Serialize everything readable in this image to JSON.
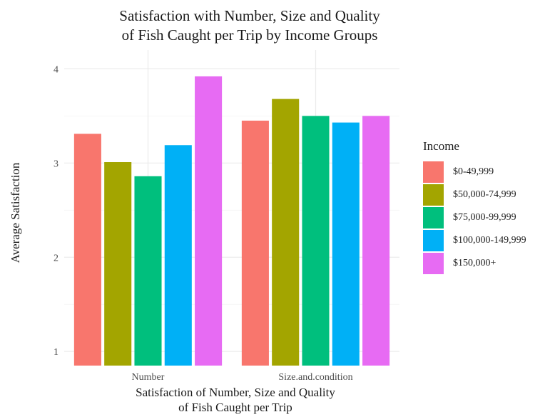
{
  "chart_data": {
    "type": "bar",
    "title": [
      "Satisfaction with Number, Size and Quality",
      "of Fish Caught per Trip by Income Groups"
    ],
    "xlabel": [
      "Satisfaction of Number, Size and Quality",
      "of Fish Caught per Trip"
    ],
    "ylabel": "Average Satisfaction",
    "categories": [
      "Number",
      "Size.and.condition"
    ],
    "yticks": [
      1,
      2,
      3,
      4
    ],
    "ylim": [
      0.85,
      4.2
    ],
    "grid": true,
    "legend": {
      "title": "Income",
      "position": "right"
    },
    "series": [
      {
        "name": "$0-49,999",
        "color": "#F8766D",
        "values": [
          3.31,
          3.45
        ]
      },
      {
        "name": "$50,000-74,999",
        "color": "#A3A500",
        "values": [
          3.01,
          3.68
        ]
      },
      {
        "name": "$75,000-99,999",
        "color": "#00BF7D",
        "values": [
          2.86,
          3.5
        ]
      },
      {
        "name": "$100,000-149,999",
        "color": "#00B0F6",
        "values": [
          3.19,
          3.43
        ]
      },
      {
        "name": "$150,000+",
        "color": "#E76BF3",
        "values": [
          3.92,
          3.5
        ]
      }
    ]
  }
}
